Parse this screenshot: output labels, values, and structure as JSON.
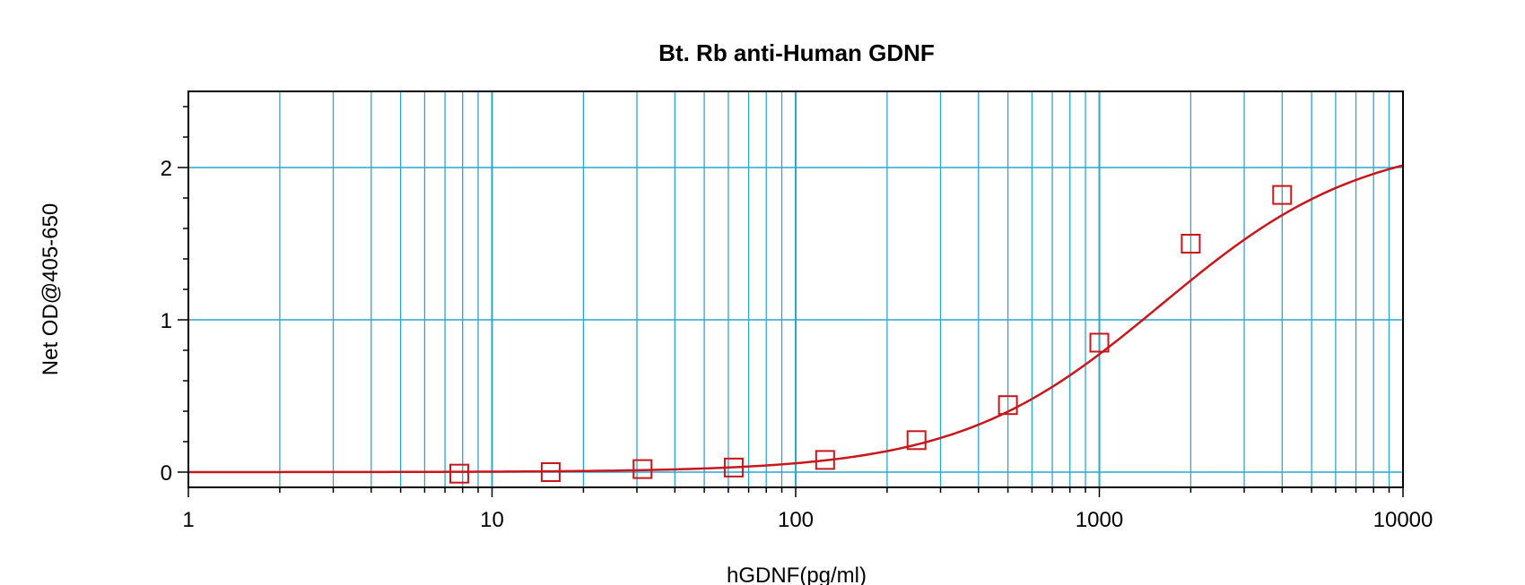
{
  "chart_data": {
    "type": "scatter",
    "title": "Bt. Rb anti-Human GDNF",
    "xlabel": "hGDNF(pg/ml)",
    "ylabel": "Net OD@405-650",
    "x_scale": "log",
    "xlim": [
      1,
      10000
    ],
    "ylim": [
      -0.1,
      2.5
    ],
    "x_ticks": [
      1,
      10,
      100,
      1000,
      10000
    ],
    "x_tick_labels": [
      "1",
      "10",
      "100",
      "1000",
      "10000"
    ],
    "y_ticks": [
      0,
      1,
      2
    ],
    "y_tick_labels": [
      "0",
      "1",
      "2"
    ],
    "grid": true,
    "series": [
      {
        "marker": "square",
        "x": [
          7.8,
          15.6,
          31.3,
          62.5,
          125,
          250,
          500,
          1000,
          2000,
          4000
        ],
        "y": [
          -0.01,
          0.0,
          0.02,
          0.03,
          0.08,
          0.21,
          0.44,
          0.85,
          1.5,
          1.82
        ]
      }
    ],
    "fit_curve": {
      "type": "4PL",
      "bottom": 0.0,
      "top": 2.2,
      "ec50": 1600,
      "hill": 1.3
    },
    "colors": {
      "grid": "#2aa7d0",
      "series": "#c8161b",
      "axis": "#000000"
    }
  }
}
